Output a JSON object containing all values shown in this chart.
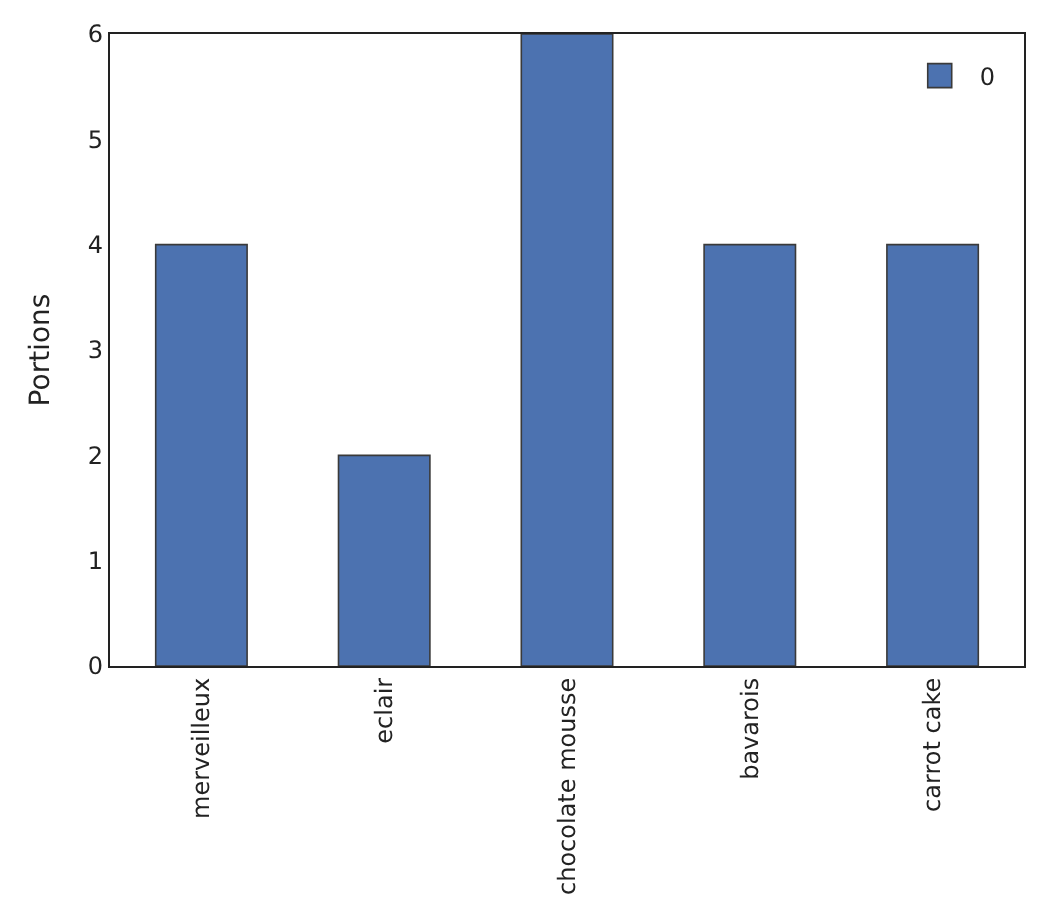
{
  "chart_data": {
    "type": "bar",
    "ylabel": "Portions",
    "categories": [
      "merveilleux",
      "eclair",
      "chocolate mousse",
      "bavarois",
      "carrot cake"
    ],
    "series": [
      {
        "name": "0",
        "color": "#4c72b0",
        "values": [
          4,
          2,
          6,
          4,
          4
        ]
      }
    ],
    "ylim": [
      0,
      6
    ],
    "yticks": [
      0,
      1,
      2,
      3,
      4,
      5,
      6
    ],
    "legend": "top right"
  }
}
